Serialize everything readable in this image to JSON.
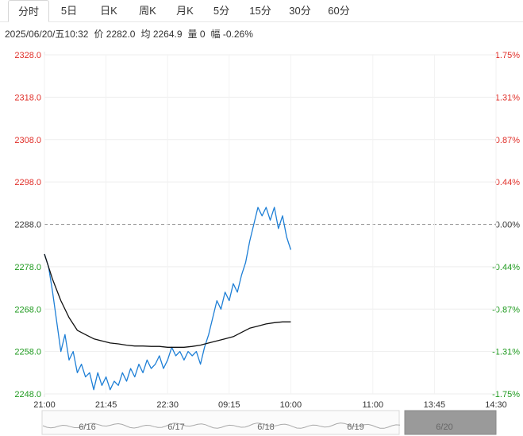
{
  "tabs": [
    {
      "label": "分时",
      "active": true
    },
    {
      "label": "5日",
      "active": false
    },
    {
      "label": "日K",
      "active": false
    },
    {
      "label": "周K",
      "active": false
    },
    {
      "label": "月K",
      "active": false
    },
    {
      "label": "5分",
      "active": false
    },
    {
      "label": "15分",
      "active": false
    },
    {
      "label": "30分",
      "active": false
    },
    {
      "label": "60分",
      "active": false
    }
  ],
  "info": {
    "datetime": "2025/06/20/五10:32",
    "price": "价 2282.0",
    "avg": "均 2264.9",
    "volume": "量 0",
    "change": "幅 -0.26%"
  },
  "colors": {
    "up": "#e0302a",
    "down": "#1f9a1f",
    "flat": "#333333",
    "price_line": "#1e7fd6",
    "avg_line": "#111111"
  },
  "chart_data": {
    "type": "line",
    "reference_price": 2288.0,
    "ylim": [
      2248,
      2328
    ],
    "y_ticks_left": [
      "2328.0",
      "2318.0",
      "2308.0",
      "2298.0",
      "2288.0",
      "2278.0",
      "2268.0",
      "2258.0",
      "2248.0"
    ],
    "y_ticks_right": [
      "1.75%",
      "1.31%",
      "0.87%",
      "0.44%",
      "0.00%",
      "-0.44%",
      "-0.87%",
      "-1.31%",
      "-1.75%"
    ],
    "x_ticks": [
      "21:00",
      "21:45",
      "22:30",
      "09:15",
      "10:00",
      "11:00",
      "13:45",
      "14:30"
    ],
    "x_tick_index": [
      0,
      45,
      90,
      135,
      180,
      240,
      285,
      330
    ],
    "series": [
      {
        "key": "price",
        "values": [
          [
            0,
            2281
          ],
          [
            3,
            2278
          ],
          [
            6,
            2272
          ],
          [
            9,
            2265
          ],
          [
            12,
            2258
          ],
          [
            15,
            2262
          ],
          [
            18,
            2256
          ],
          [
            21,
            2258
          ],
          [
            24,
            2253
          ],
          [
            27,
            2255
          ],
          [
            30,
            2252
          ],
          [
            33,
            2253
          ],
          [
            36,
            2249
          ],
          [
            39,
            2253
          ],
          [
            42,
            2250
          ],
          [
            45,
            2252
          ],
          [
            48,
            2249
          ],
          [
            51,
            2251
          ],
          [
            54,
            2250
          ],
          [
            57,
            2253
          ],
          [
            60,
            2251
          ],
          [
            63,
            2254
          ],
          [
            66,
            2252
          ],
          [
            69,
            2255
          ],
          [
            72,
            2253
          ],
          [
            75,
            2256
          ],
          [
            78,
            2254
          ],
          [
            81,
            2255
          ],
          [
            84,
            2257
          ],
          [
            87,
            2254
          ],
          [
            90,
            2256
          ],
          [
            93,
            2259
          ],
          [
            96,
            2257
          ],
          [
            99,
            2258
          ],
          [
            102,
            2256
          ],
          [
            105,
            2258
          ],
          [
            108,
            2257
          ],
          [
            111,
            2258
          ],
          [
            114,
            2255
          ],
          [
            117,
            2259
          ],
          [
            120,
            2262
          ],
          [
            123,
            2266
          ],
          [
            126,
            2270
          ],
          [
            129,
            2268
          ],
          [
            132,
            2272
          ],
          [
            135,
            2270
          ],
          [
            138,
            2274
          ],
          [
            141,
            2272
          ],
          [
            144,
            2276
          ],
          [
            147,
            2279
          ],
          [
            150,
            2284
          ],
          [
            153,
            2288
          ],
          [
            156,
            2292
          ],
          [
            159,
            2290
          ],
          [
            162,
            2292
          ],
          [
            165,
            2289
          ],
          [
            168,
            2292
          ],
          [
            171,
            2287
          ],
          [
            174,
            2290
          ],
          [
            177,
            2285
          ],
          [
            180,
            2282
          ]
        ]
      },
      {
        "key": "avg",
        "values": [
          [
            0,
            2281
          ],
          [
            6,
            2275
          ],
          [
            12,
            2270
          ],
          [
            18,
            2266
          ],
          [
            24,
            2263
          ],
          [
            30,
            2262
          ],
          [
            36,
            2261
          ],
          [
            42,
            2260.5
          ],
          [
            48,
            2260
          ],
          [
            54,
            2259.8
          ],
          [
            60,
            2259.5
          ],
          [
            66,
            2259.3
          ],
          [
            72,
            2259.3
          ],
          [
            78,
            2259.2
          ],
          [
            84,
            2259.2
          ],
          [
            90,
            2259
          ],
          [
            96,
            2259
          ],
          [
            102,
            2259
          ],
          [
            108,
            2259.2
          ],
          [
            114,
            2259.5
          ],
          [
            120,
            2260
          ],
          [
            126,
            2260.5
          ],
          [
            132,
            2261
          ],
          [
            138,
            2261.5
          ],
          [
            144,
            2262.5
          ],
          [
            150,
            2263.5
          ],
          [
            156,
            2264
          ],
          [
            162,
            2264.5
          ],
          [
            168,
            2264.8
          ],
          [
            174,
            2265
          ],
          [
            180,
            2265
          ]
        ]
      }
    ],
    "navigator": {
      "dates": [
        "6/16",
        "6/17",
        "6/18",
        "6/19",
        "6/20"
      ]
    }
  }
}
